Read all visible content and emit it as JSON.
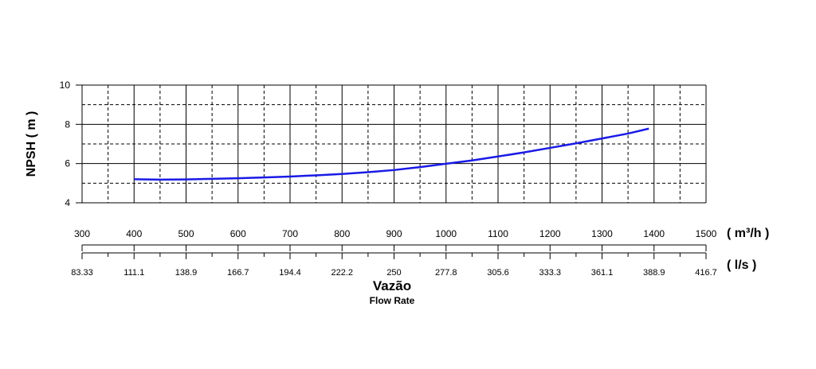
{
  "chart_data": {
    "type": "line",
    "ylabel": "NPSH ( m )",
    "xlabel": "Vazão",
    "xlabel_sub": "Flow Rate",
    "x_unit": "( m³/h )",
    "x2_unit": "( l/s )",
    "xlim": [
      300,
      1500
    ],
    "ylim": [
      4,
      10
    ],
    "y_ticks": [
      4,
      6,
      8,
      10
    ],
    "x_ticks": [
      300,
      400,
      500,
      600,
      700,
      800,
      900,
      1000,
      1100,
      1200,
      1300,
      1400,
      1500
    ],
    "x2_tick_labels": [
      "83.33",
      "111.1",
      "138.9",
      "166.7",
      "194.4",
      "222.2",
      "250",
      "277.8",
      "305.6",
      "333.3",
      "361.1",
      "388.9",
      "416.7"
    ],
    "grid": true,
    "line_color": "#1a1ae6",
    "series": [
      {
        "x": [
          400,
          450,
          500,
          550,
          600,
          650,
          700,
          750,
          800,
          850,
          900,
          950,
          1000,
          1050,
          1100,
          1150,
          1200,
          1250,
          1300,
          1350,
          1390
        ],
        "y": [
          5.2,
          5.18,
          5.19,
          5.22,
          5.25,
          5.29,
          5.34,
          5.4,
          5.47,
          5.56,
          5.67,
          5.82,
          5.99,
          6.16,
          6.36,
          6.57,
          6.8,
          7.03,
          7.28,
          7.53,
          7.78
        ]
      }
    ]
  }
}
